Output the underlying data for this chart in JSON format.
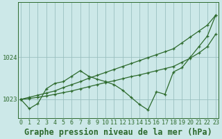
{
  "title": "Graphe pression niveau de la mer (hPa)",
  "x_labels": [
    "0",
    "1",
    "2",
    "3",
    "4",
    "5",
    "6",
    "7",
    "8",
    "9",
    "10",
    "11",
    "12",
    "13",
    "14",
    "15",
    "16",
    "17",
    "18",
    "19",
    "20",
    "21",
    "22",
    "23"
  ],
  "x_values": [
    0,
    1,
    2,
    3,
    4,
    5,
    6,
    7,
    8,
    9,
    10,
    11,
    12,
    13,
    14,
    15,
    16,
    17,
    18,
    19,
    20,
    21,
    22,
    23
  ],
  "line_upper": [
    1023.0,
    1023.05,
    1023.1,
    1023.15,
    1023.2,
    1023.28,
    1023.35,
    1023.42,
    1023.5,
    1023.57,
    1023.64,
    1023.71,
    1023.78,
    1023.85,
    1023.92,
    1023.99,
    1024.06,
    1024.13,
    1024.2,
    1024.34,
    1024.48,
    1024.62,
    1024.76,
    1025.0
  ],
  "line_lower": [
    1023.0,
    1023.02,
    1023.05,
    1023.08,
    1023.12,
    1023.16,
    1023.2,
    1023.25,
    1023.3,
    1023.35,
    1023.4,
    1023.44,
    1023.49,
    1023.54,
    1023.58,
    1023.63,
    1023.68,
    1023.73,
    1023.78,
    1023.88,
    1023.98,
    1024.1,
    1024.25,
    1024.55
  ],
  "line_zigzag": [
    1023.0,
    1022.78,
    1022.9,
    1023.25,
    1023.38,
    1023.42,
    1023.55,
    1023.68,
    1023.55,
    1023.48,
    1023.42,
    1023.35,
    1023.22,
    1023.05,
    1022.88,
    1022.75,
    1023.18,
    1023.12,
    1023.65,
    1023.75,
    1024.0,
    1024.25,
    1024.5,
    1025.0
  ],
  "line_color": "#2d6a2d",
  "bg_color": "#cce8e8",
  "grid_color": "#9ac0c0",
  "ylim_min": 1022.55,
  "ylim_max": 1025.3,
  "yticks": [
    1023,
    1024
  ],
  "title_fontsize": 8.5,
  "tick_fontsize": 6.5
}
